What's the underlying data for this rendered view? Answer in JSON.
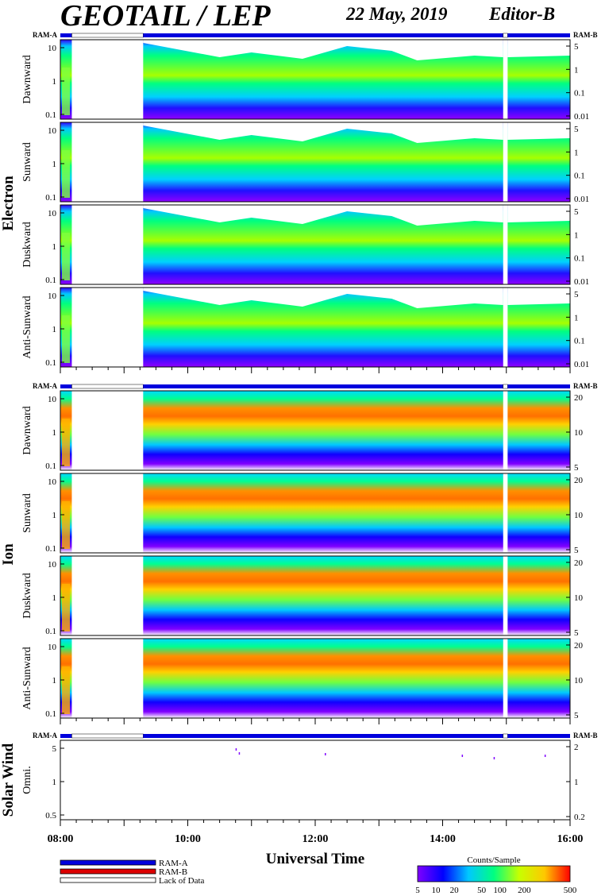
{
  "header": {
    "title": "GEOTAIL / LEP",
    "date": "22 May, 2019",
    "editor": "Editor-B"
  },
  "chart_data": {
    "type": "heatmap",
    "x": {
      "label": "Universal Time",
      "ticks": [
        "08:00",
        "10:00",
        "12:00",
        "14:00",
        "16:00"
      ],
      "range_hours": [
        8,
        16
      ]
    },
    "data_gaps_hours": [
      [
        8.18,
        9.3
      ],
      [
        14.95,
        15.02
      ]
    ],
    "ram_label_left": "RAM-A",
    "ram_label_right": "RAM-B",
    "groups": [
      {
        "name": "Electron",
        "right_scale": "log",
        "panels": [
          {
            "label": "Dawnward",
            "left_ticks": [
              "10",
              "1",
              "0.1"
            ],
            "right_ticks": [
              "5",
              "1",
              "0.1",
              "0.01"
            ]
          },
          {
            "label": "Sunward",
            "left_ticks": [
              "10",
              "1",
              "0.1"
            ],
            "right_ticks": [
              "5",
              "1",
              "0.1",
              "0.01"
            ]
          },
          {
            "label": "Duskward",
            "left_ticks": [
              "10",
              "1",
              "0.1"
            ],
            "right_ticks": [
              "5",
              "1",
              "0.1",
              "0.01"
            ]
          },
          {
            "label": "Anti-Sunward",
            "left_ticks": [
              "10",
              "1",
              "0.1"
            ],
            "right_ticks": [
              "5",
              "1",
              "0.1",
              "0.01"
            ]
          }
        ]
      },
      {
        "name": "Ion",
        "right_scale": "linear",
        "panels": [
          {
            "label": "Dawnward",
            "left_ticks": [
              "10",
              "1",
              "0.1"
            ],
            "right_ticks": [
              "20",
              "10",
              "5"
            ]
          },
          {
            "label": "Sunward",
            "left_ticks": [
              "10",
              "1",
              "0.1"
            ],
            "right_ticks": [
              "20",
              "10",
              "5"
            ]
          },
          {
            "label": "Duskward",
            "left_ticks": [
              "10",
              "1",
              "0.1"
            ],
            "right_ticks": [
              "20",
              "10",
              "5"
            ]
          },
          {
            "label": "Anti-Sunward",
            "left_ticks": [
              "10",
              "1",
              "0.1"
            ],
            "right_ticks": [
              "20",
              "10",
              "5"
            ]
          }
        ]
      },
      {
        "name": "Solar Wind",
        "panels": [
          {
            "label": "Omni.",
            "left_ticks": [
              "5",
              "1",
              "0.5"
            ],
            "right_ticks": [
              "2",
              "1",
              "0.2"
            ]
          }
        ]
      }
    ],
    "legend": {
      "items": [
        {
          "label": "RAM-A",
          "color": "#0000dd"
        },
        {
          "label": "RAM-B",
          "color": "#dd0000"
        },
        {
          "label": "Lack of Data",
          "color": "#ffffff"
        }
      ]
    },
    "colorbar": {
      "title": "Counts/Sample",
      "ticks": [
        "5",
        "10",
        "20",
        "50",
        "100",
        "200",
        "500"
      ],
      "colors": [
        "#8000ff",
        "#0000ff",
        "#00c8ff",
        "#00ff80",
        "#c8ff00",
        "#ffc800",
        "#ff0000"
      ]
    }
  }
}
